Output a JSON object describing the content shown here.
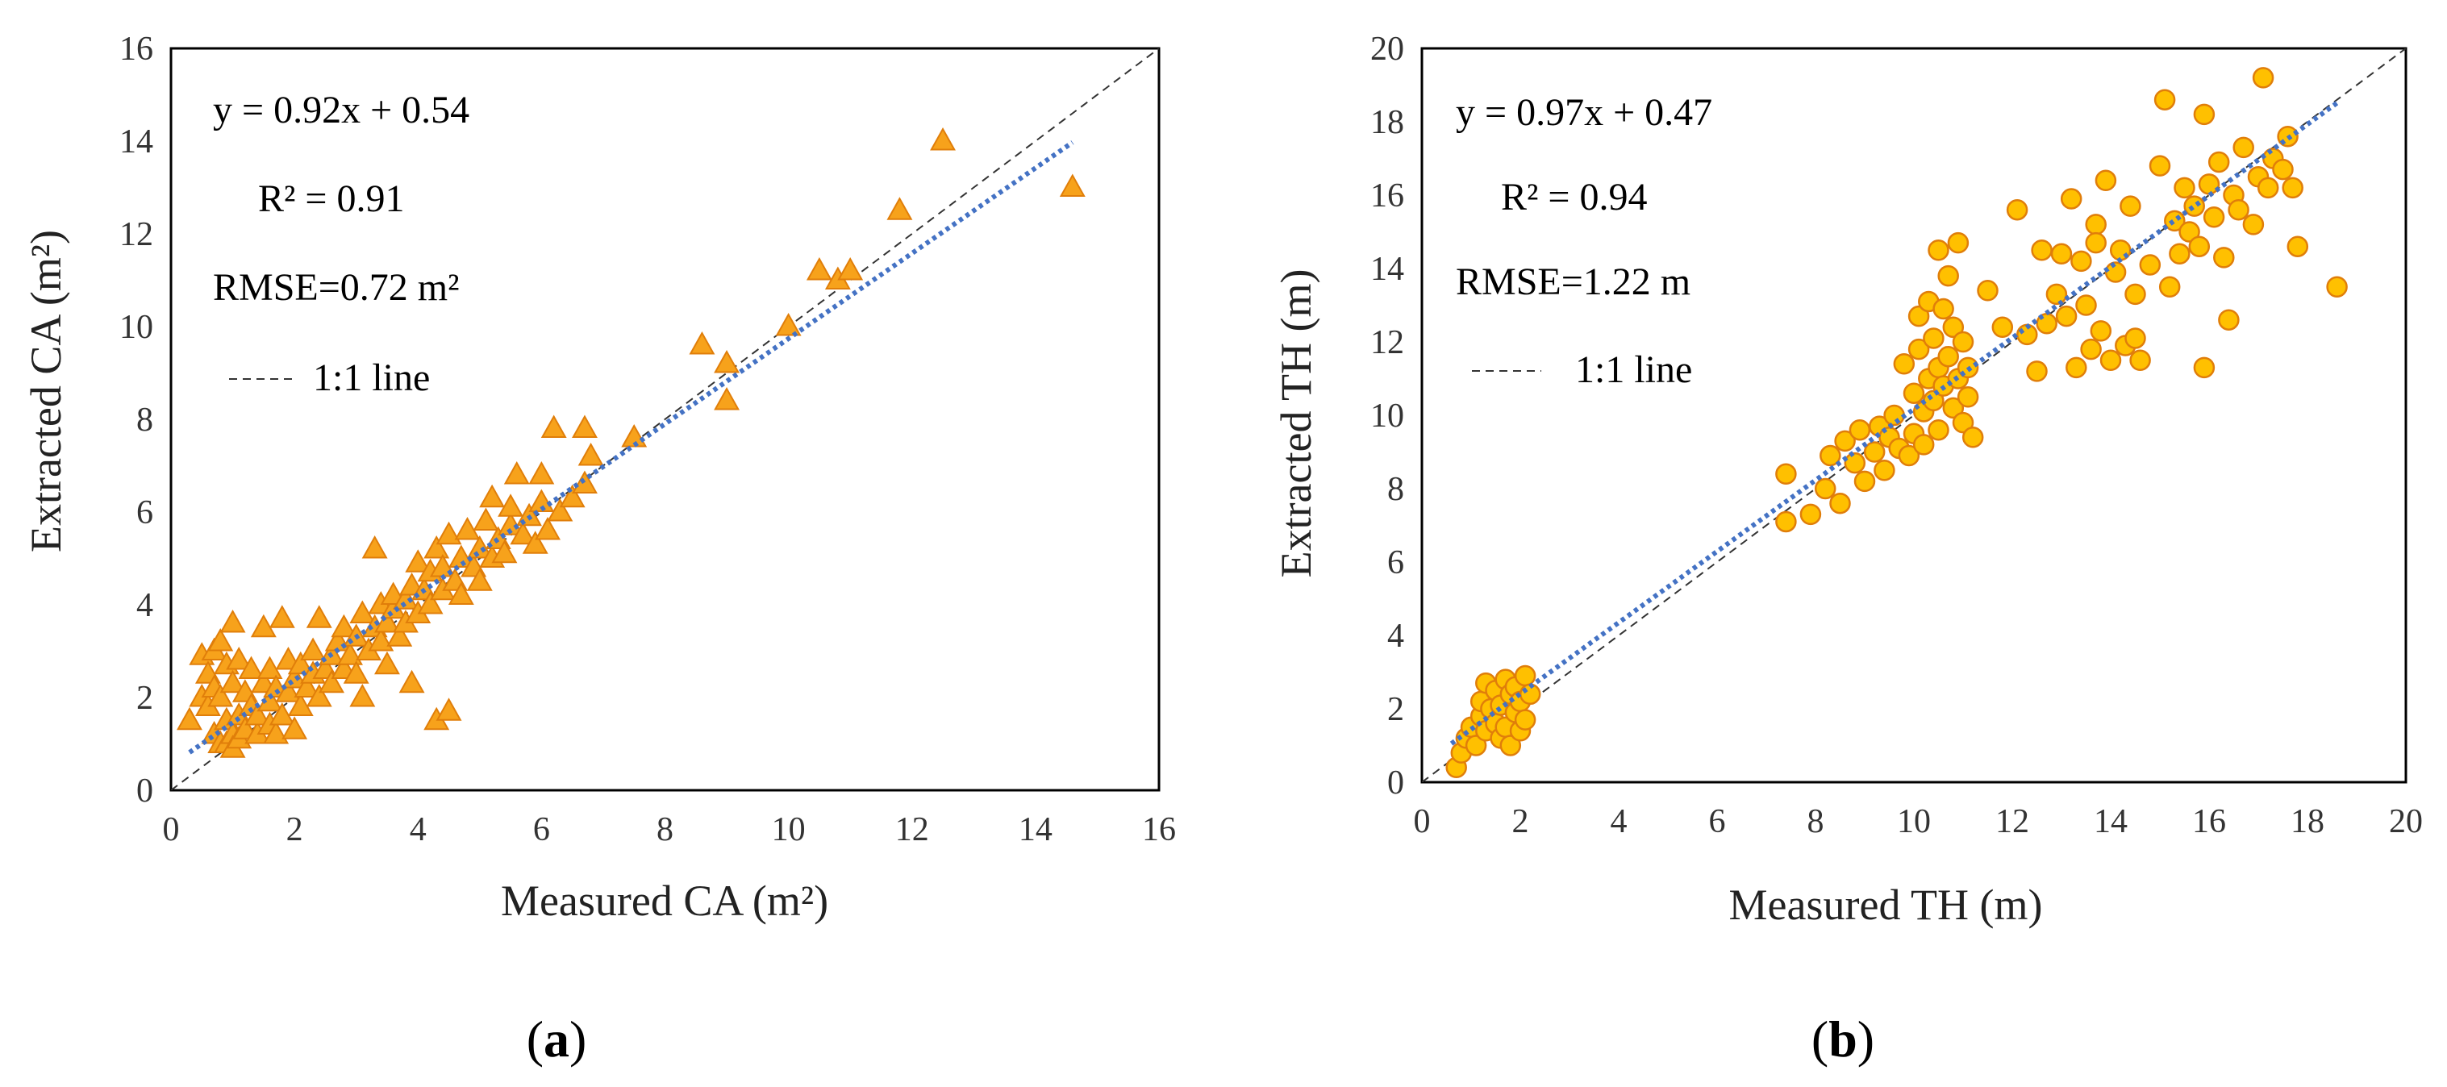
{
  "chart_data": [
    {
      "panel_label": "a",
      "type": "scatter",
      "xlabel": "Measured CA (m²)",
      "ylabel": "Extracted CA (m²)",
      "xlim": [
        0,
        16
      ],
      "ylim": [
        0,
        16
      ],
      "xticks": [
        "0",
        "2",
        "4",
        "6",
        "8",
        "10",
        "12",
        "14",
        "16"
      ],
      "yticks": [
        "0",
        "2",
        "4",
        "6",
        "8",
        "10",
        "12",
        "14",
        "16"
      ],
      "marker": "triangle",
      "marker_fill": "#F7A21B",
      "marker_edge": "#E07E0A",
      "regression": {
        "slope": 0.92,
        "intercept": 0.54,
        "x_range": [
          0.3,
          14.6
        ],
        "color": "#4472C4"
      },
      "annotations": {
        "equation": "y = 0.92x + 0.54",
        "r2": "R² = 0.91",
        "rmse": "RMSE=0.72 m²",
        "line_legend": "1:1 line"
      },
      "points": [
        [
          0.3,
          1.5
        ],
        [
          0.5,
          2.0
        ],
        [
          0.5,
          2.9
        ],
        [
          0.6,
          2.5
        ],
        [
          0.6,
          1.8
        ],
        [
          0.7,
          3.0
        ],
        [
          0.7,
          2.2
        ],
        [
          0.7,
          1.2
        ],
        [
          0.8,
          1.0
        ],
        [
          0.8,
          3.2
        ],
        [
          0.8,
          2.0
        ],
        [
          0.9,
          2.7
        ],
        [
          0.9,
          1.5
        ],
        [
          0.9,
          1.0
        ],
        [
          1.0,
          3.6
        ],
        [
          1.0,
          2.3
        ],
        [
          1.0,
          1.2
        ],
        [
          1.0,
          0.9
        ],
        [
          1.1,
          2.8
        ],
        [
          1.1,
          1.6
        ],
        [
          1.1,
          1.1
        ],
        [
          1.2,
          2.1
        ],
        [
          1.2,
          1.3
        ],
        [
          1.3,
          1.8
        ],
        [
          1.3,
          2.6
        ],
        [
          1.4,
          1.2
        ],
        [
          1.4,
          1.6
        ],
        [
          1.5,
          2.3
        ],
        [
          1.5,
          3.5
        ],
        [
          1.6,
          1.4
        ],
        [
          1.6,
          2.6
        ],
        [
          1.6,
          1.9
        ],
        [
          1.7,
          1.2
        ],
        [
          1.7,
          2.2
        ],
        [
          1.8,
          3.7
        ],
        [
          1.8,
          1.6
        ],
        [
          1.9,
          2.1
        ],
        [
          1.9,
          2.8
        ],
        [
          2.0,
          1.3
        ],
        [
          2.0,
          2.4
        ],
        [
          2.1,
          1.8
        ],
        [
          2.1,
          2.7
        ],
        [
          2.2,
          2.2
        ],
        [
          2.3,
          2.5
        ],
        [
          2.3,
          3.0
        ],
        [
          2.4,
          3.7
        ],
        [
          2.4,
          2.0
        ],
        [
          2.5,
          2.6
        ],
        [
          2.6,
          2.3
        ],
        [
          2.6,
          2.9
        ],
        [
          2.7,
          3.2
        ],
        [
          2.8,
          2.6
        ],
        [
          2.8,
          3.5
        ],
        [
          2.9,
          2.9
        ],
        [
          3.0,
          3.3
        ],
        [
          3.0,
          2.5
        ],
        [
          3.1,
          2.0
        ],
        [
          3.1,
          3.8
        ],
        [
          3.2,
          3.0
        ],
        [
          3.3,
          3.5
        ],
        [
          3.3,
          5.2
        ],
        [
          3.4,
          3.2
        ],
        [
          3.4,
          4.0
        ],
        [
          3.5,
          2.7
        ],
        [
          3.5,
          3.6
        ],
        [
          3.6,
          3.9
        ],
        [
          3.6,
          4.2
        ],
        [
          3.7,
          3.3
        ],
        [
          3.8,
          4.1
        ],
        [
          3.8,
          3.6
        ],
        [
          3.9,
          4.4
        ],
        [
          3.9,
          2.3
        ],
        [
          4.0,
          3.8
        ],
        [
          4.0,
          4.9
        ],
        [
          4.1,
          4.3
        ],
        [
          4.2,
          4.0
        ],
        [
          4.2,
          4.7
        ],
        [
          4.3,
          1.5
        ],
        [
          4.3,
          5.2
        ],
        [
          4.4,
          4.3
        ],
        [
          4.4,
          4.8
        ],
        [
          4.5,
          1.7
        ],
        [
          4.5,
          5.5
        ],
        [
          4.6,
          4.5
        ],
        [
          4.7,
          5.0
        ],
        [
          4.7,
          4.2
        ],
        [
          4.8,
          5.6
        ],
        [
          4.9,
          4.8
        ],
        [
          5.0,
          5.2
        ],
        [
          5.0,
          4.5
        ],
        [
          5.1,
          5.8
        ],
        [
          5.2,
          5.0
        ],
        [
          5.2,
          6.3
        ],
        [
          5.3,
          5.4
        ],
        [
          5.4,
          5.1
        ],
        [
          5.5,
          5.7
        ],
        [
          5.5,
          6.1
        ],
        [
          5.6,
          6.8
        ],
        [
          5.7,
          5.5
        ],
        [
          5.8,
          5.9
        ],
        [
          5.9,
          5.3
        ],
        [
          6.0,
          6.2
        ],
        [
          6.0,
          6.8
        ],
        [
          6.1,
          5.6
        ],
        [
          6.2,
          7.8
        ],
        [
          6.3,
          6.0
        ],
        [
          6.5,
          6.3
        ],
        [
          6.7,
          7.8
        ],
        [
          6.7,
          6.6
        ],
        [
          6.8,
          7.2
        ],
        [
          7.5,
          7.6
        ],
        [
          8.6,
          9.6
        ],
        [
          9.0,
          9.2
        ],
        [
          9.0,
          8.4
        ],
        [
          10.0,
          10.0
        ],
        [
          10.5,
          11.2
        ],
        [
          10.8,
          11.0
        ],
        [
          11.0,
          11.2
        ],
        [
          11.8,
          12.5
        ],
        [
          12.5,
          14.0
        ],
        [
          14.6,
          13.0
        ]
      ]
    },
    {
      "panel_label": "b",
      "type": "scatter",
      "xlabel": "Measured  TH (m)",
      "ylabel": "Extracted TH (m)",
      "xlim": [
        0,
        20
      ],
      "ylim": [
        0,
        20
      ],
      "xticks": [
        "0",
        "2",
        "4",
        "6",
        "8",
        "10",
        "12",
        "14",
        "16",
        "18",
        "20"
      ],
      "yticks": [
        "0",
        "2",
        "4",
        "6",
        "8",
        "10",
        "12",
        "14",
        "16",
        "18",
        "20"
      ],
      "marker": "circle",
      "marker_fill": "#FFC000",
      "marker_edge": "#E07E0A",
      "regression": {
        "slope": 0.97,
        "intercept": 0.47,
        "x_range": [
          0.6,
          18.6
        ],
        "color": "#4472C4"
      },
      "annotations": {
        "equation": "y = 0.97x + 0.47",
        "r2": "R² = 0.94",
        "rmse": "RMSE=1.22 m",
        "line_legend": "1:1 line"
      },
      "points": [
        [
          0.7,
          0.4
        ],
        [
          0.8,
          0.8
        ],
        [
          0.9,
          1.2
        ],
        [
          1.0,
          1.5
        ],
        [
          1.1,
          1.0
        ],
        [
          1.2,
          1.8
        ],
        [
          1.2,
          2.2
        ],
        [
          1.3,
          1.4
        ],
        [
          1.3,
          2.7
        ],
        [
          1.4,
          2.0
        ],
        [
          1.5,
          1.6
        ],
        [
          1.5,
          2.5
        ],
        [
          1.6,
          1.2
        ],
        [
          1.6,
          2.1
        ],
        [
          1.7,
          2.8
        ],
        [
          1.7,
          1.5
        ],
        [
          1.8,
          2.4
        ],
        [
          1.8,
          1.0
        ],
        [
          1.9,
          1.9
        ],
        [
          1.9,
          2.6
        ],
        [
          2.0,
          1.4
        ],
        [
          2.0,
          2.2
        ],
        [
          2.1,
          2.9
        ],
        [
          2.1,
          1.7
        ],
        [
          2.2,
          2.4
        ],
        [
          7.4,
          7.1
        ],
        [
          7.4,
          8.4
        ],
        [
          7.9,
          7.3
        ],
        [
          8.2,
          8.0
        ],
        [
          8.3,
          8.9
        ],
        [
          8.5,
          7.6
        ],
        [
          8.6,
          9.3
        ],
        [
          8.8,
          8.7
        ],
        [
          8.9,
          9.6
        ],
        [
          9.0,
          8.2
        ],
        [
          9.2,
          9.0
        ],
        [
          9.3,
          9.7
        ],
        [
          9.4,
          8.5
        ],
        [
          9.5,
          9.4
        ],
        [
          9.6,
          10.0
        ],
        [
          9.7,
          9.1
        ],
        [
          9.8,
          11.4
        ],
        [
          9.9,
          8.9
        ],
        [
          10.0,
          10.6
        ],
        [
          10.0,
          9.5
        ],
        [
          10.1,
          11.8
        ],
        [
          10.1,
          12.7
        ],
        [
          10.2,
          10.1
        ],
        [
          10.2,
          9.2
        ],
        [
          10.3,
          11.0
        ],
        [
          10.3,
          13.1
        ],
        [
          10.4,
          10.4
        ],
        [
          10.4,
          12.1
        ],
        [
          10.5,
          9.6
        ],
        [
          10.5,
          11.3
        ],
        [
          10.5,
          14.5
        ],
        [
          10.6,
          10.8
        ],
        [
          10.6,
          12.9
        ],
        [
          10.7,
          11.6
        ],
        [
          10.7,
          13.8
        ],
        [
          10.8,
          10.2
        ],
        [
          10.8,
          12.4
        ],
        [
          10.9,
          11.0
        ],
        [
          10.9,
          14.7
        ],
        [
          11.0,
          9.8
        ],
        [
          11.0,
          12.0
        ],
        [
          11.1,
          11.3
        ],
        [
          11.1,
          10.5
        ],
        [
          11.2,
          9.4
        ],
        [
          11.5,
          13.4
        ],
        [
          11.8,
          12.4
        ],
        [
          12.1,
          15.6
        ],
        [
          12.3,
          12.2
        ],
        [
          12.5,
          11.2
        ],
        [
          12.6,
          14.5
        ],
        [
          12.7,
          12.5
        ],
        [
          12.9,
          13.3
        ],
        [
          13.0,
          14.4
        ],
        [
          13.1,
          12.7
        ],
        [
          13.2,
          15.9
        ],
        [
          13.3,
          11.3
        ],
        [
          13.4,
          14.2
        ],
        [
          13.5,
          13.0
        ],
        [
          13.6,
          11.8
        ],
        [
          13.7,
          15.2
        ],
        [
          13.7,
          14.7
        ],
        [
          13.8,
          12.3
        ],
        [
          13.9,
          16.4
        ],
        [
          14.0,
          11.5
        ],
        [
          14.1,
          13.9
        ],
        [
          14.2,
          14.5
        ],
        [
          14.3,
          11.9
        ],
        [
          14.4,
          15.7
        ],
        [
          14.5,
          13.3
        ],
        [
          14.5,
          12.1
        ],
        [
          14.6,
          11.5
        ],
        [
          14.8,
          14.1
        ],
        [
          15.0,
          16.8
        ],
        [
          15.1,
          18.6
        ],
        [
          15.2,
          13.5
        ],
        [
          15.3,
          15.3
        ],
        [
          15.4,
          14.4
        ],
        [
          15.5,
          16.2
        ],
        [
          15.6,
          15.0
        ],
        [
          15.7,
          15.7
        ],
        [
          15.8,
          14.6
        ],
        [
          15.9,
          11.3
        ],
        [
          15.9,
          18.2
        ],
        [
          16.0,
          16.3
        ],
        [
          16.1,
          15.4
        ],
        [
          16.2,
          16.9
        ],
        [
          16.3,
          14.3
        ],
        [
          16.4,
          12.6
        ],
        [
          16.5,
          16.0
        ],
        [
          16.6,
          15.6
        ],
        [
          16.7,
          17.3
        ],
        [
          16.9,
          15.2
        ],
        [
          17.0,
          16.5
        ],
        [
          17.1,
          19.2
        ],
        [
          17.2,
          16.2
        ],
        [
          17.3,
          17.0
        ],
        [
          17.5,
          16.7
        ],
        [
          17.6,
          17.6
        ],
        [
          17.7,
          16.2
        ],
        [
          17.8,
          14.6
        ],
        [
          18.6,
          13.5
        ]
      ]
    }
  ]
}
